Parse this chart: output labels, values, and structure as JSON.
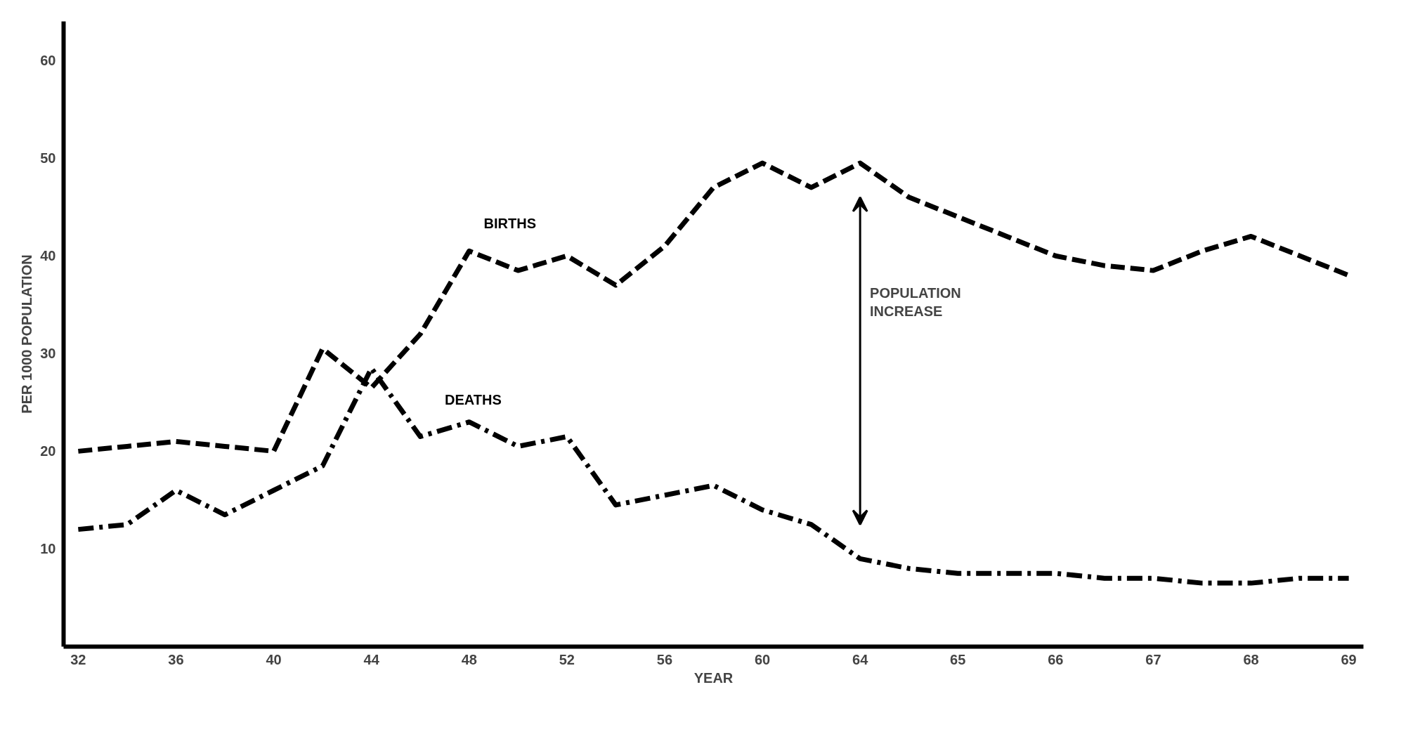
{
  "chart_data": {
    "type": "line",
    "xlabel": "YEAR",
    "ylabel": "PER 1000 POPULATION",
    "categories": [
      "32",
      null,
      "36",
      null,
      "40",
      null,
      "44",
      null,
      "48",
      null,
      "52",
      null,
      "56",
      null,
      "60",
      null,
      "64",
      null,
      "65",
      null,
      "66",
      null,
      "67",
      null,
      "68",
      null,
      "69"
    ],
    "series": [
      {
        "name": "BIRTHS",
        "color": "#000000",
        "line_style": "dashed",
        "values": [
          20,
          20.5,
          21,
          20.5,
          20,
          30.5,
          26.5,
          32,
          40.5,
          38.5,
          40,
          37,
          41,
          47,
          49.5,
          47,
          49.5,
          46,
          44,
          42,
          40,
          39,
          38.5,
          40.5,
          42,
          40,
          38
        ]
      },
      {
        "name": "DEATHS",
        "color": "#000000",
        "line_style": "dashdot",
        "values": [
          12,
          12.5,
          16,
          13.5,
          16,
          18.5,
          28.5,
          21.5,
          23,
          20.5,
          21.5,
          14.5,
          15.5,
          16.5,
          14,
          12.5,
          9,
          8,
          7.5,
          7.5,
          7.5,
          7,
          7,
          6.5,
          6.5,
          7,
          7
        ]
      }
    ],
    "annotations": [
      "POPULATION\nINCREASE"
    ],
    "ylim": [
      0,
      64
    ],
    "yticks": [
      10,
      20,
      30,
      40,
      50,
      60
    ],
    "grid": false,
    "legend": false
  }
}
